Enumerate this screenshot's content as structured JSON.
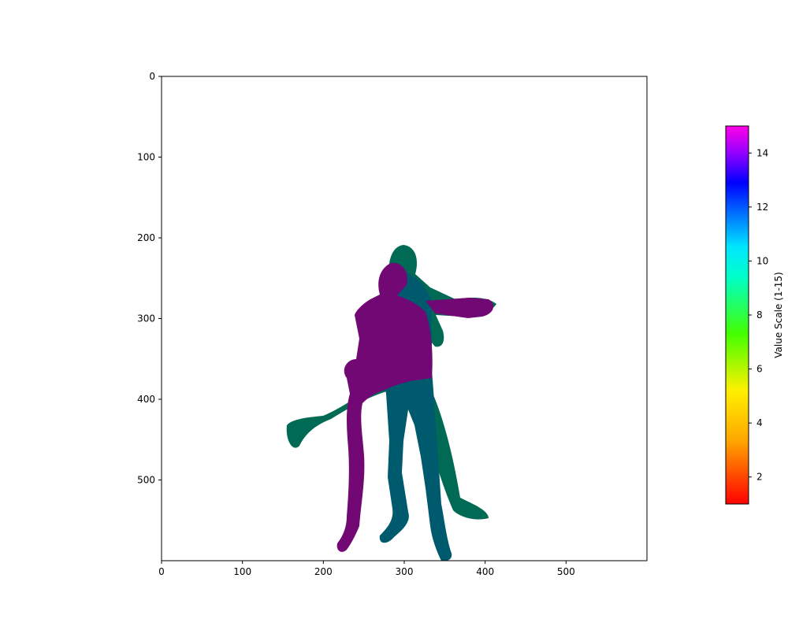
{
  "chart_data": {
    "type": "heatmap",
    "title": "",
    "xlabel": "",
    "ylabel": "",
    "xlim": [
      0,
      600
    ],
    "ylim": [
      600,
      0
    ],
    "x_ticks": [
      0,
      100,
      200,
      300,
      400,
      500
    ],
    "y_ticks": [
      0,
      100,
      200,
      300,
      400,
      500
    ],
    "grid": false,
    "colorbar": {
      "label": "Value Scale (1-15)",
      "range": [
        1,
        15
      ],
      "ticks": [
        2,
        4,
        6,
        8,
        10,
        12,
        14
      ],
      "colormap": "gist_rainbow (red to magenta)"
    },
    "figures": [
      {
        "name": "magenta-figure",
        "color": "#720874"
      },
      {
        "name": "teal-figure",
        "color": "#005a6e"
      },
      {
        "name": "green-figure",
        "color": "#006a54"
      }
    ]
  }
}
